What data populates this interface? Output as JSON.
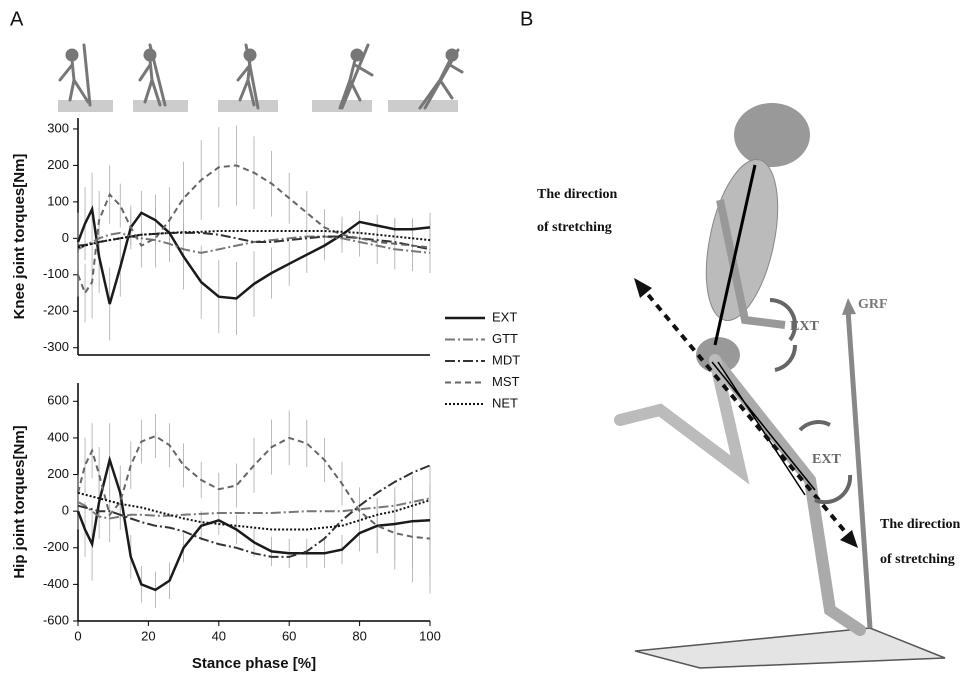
{
  "panels": [
    "A",
    "B"
  ],
  "illustration": {
    "labels": [
      "The direction",
      "of stretching",
      "GRF",
      "EXT",
      "EXT",
      "The direction",
      "of stretching"
    ]
  },
  "chart_data": [
    {
      "type": "line",
      "y_label": "Knee joint torques[Nm]",
      "legend": "right",
      "x": [
        0,
        2,
        4,
        6,
        9,
        12,
        15,
        18,
        22,
        26,
        30,
        35,
        40,
        45,
        50,
        55,
        60,
        65,
        70,
        75,
        80,
        85,
        90,
        95,
        100
      ],
      "xlim": [
        0,
        100
      ],
      "ylim": [
        -320,
        330
      ],
      "yticks": [
        -300,
        -200,
        -100,
        0,
        100,
        200,
        300
      ],
      "series": [
        {
          "name": "EXT",
          "color": "#1a1a1a",
          "style": "solid",
          "values": [
            -10,
            40,
            80,
            -50,
            -180,
            -80,
            30,
            70,
            50,
            15,
            -50,
            -120,
            -160,
            -165,
            -125,
            -95,
            -70,
            -45,
            -20,
            10,
            45,
            35,
            25,
            25,
            30
          ],
          "errors": [
            80,
            100,
            100,
            100,
            100,
            80,
            60,
            60,
            70,
            80,
            90,
            100,
            100,
            100,
            90,
            70,
            60,
            50,
            40,
            30,
            30,
            30,
            30,
            30,
            40
          ]
        },
        {
          "name": "GTT",
          "color": "#777777",
          "style": "dashdot",
          "values": [
            -30,
            -20,
            -10,
            0,
            10,
            15,
            5,
            0,
            -5,
            -15,
            -30,
            -40,
            -30,
            -20,
            -10,
            -5,
            0,
            5,
            5,
            0,
            -10,
            -20,
            -30,
            -35,
            -40
          ]
        },
        {
          "name": "MDT",
          "color": "#333333",
          "style": "dashdot",
          "values": [
            -20,
            -18,
            -15,
            -10,
            -5,
            0,
            5,
            10,
            12,
            15,
            15,
            15,
            10,
            0,
            -10,
            -10,
            -5,
            0,
            5,
            5,
            0,
            -5,
            -10,
            -20,
            -30
          ]
        },
        {
          "name": "MST",
          "color": "#666666",
          "style": "dash",
          "values": [
            -100,
            -150,
            -120,
            50,
            120,
            90,
            30,
            -20,
            0,
            50,
            110,
            160,
            195,
            200,
            180,
            150,
            110,
            70,
            30,
            10,
            0,
            -10,
            -15,
            -20,
            -25
          ],
          "errors": [
            60,
            80,
            100,
            80,
            80,
            60,
            50,
            60,
            80,
            90,
            100,
            110,
            110,
            110,
            100,
            90,
            70,
            60,
            50,
            50,
            50,
            60,
            70,
            70,
            70
          ]
        },
        {
          "name": "NET",
          "color": "#111111",
          "style": "dot",
          "values": [
            -25,
            -20,
            -15,
            -10,
            -5,
            0,
            5,
            10,
            12,
            15,
            17,
            18,
            20,
            20,
            20,
            20,
            20,
            20,
            20,
            18,
            15,
            10,
            5,
            0,
            -5
          ]
        }
      ]
    },
    {
      "type": "line",
      "y_label": "Hip joint torques[Nm]",
      "x_label": "Stance phase  [%]",
      "x": [
        0,
        2,
        4,
        6,
        9,
        12,
        15,
        18,
        22,
        26,
        30,
        35,
        40,
        45,
        50,
        55,
        60,
        65,
        70,
        75,
        80,
        85,
        90,
        95,
        100
      ],
      "xlim": [
        0,
        100
      ],
      "ylim": [
        -600,
        700
      ],
      "xticks": [
        0,
        20,
        40,
        60,
        80,
        100
      ],
      "yticks": [
        -600,
        -400,
        -200,
        0,
        200,
        400,
        600
      ],
      "series": [
        {
          "name": "EXT",
          "color": "#1a1a1a",
          "style": "solid",
          "values": [
            0,
            -100,
            -180,
            50,
            280,
            100,
            -250,
            -400,
            -430,
            -380,
            -200,
            -80,
            -50,
            -100,
            -170,
            -220,
            -230,
            -230,
            -230,
            -210,
            -120,
            -80,
            -70,
            -55,
            -50
          ],
          "errors": [
            100,
            150,
            200,
            200,
            200,
            150,
            120,
            100,
            100,
            100,
            80,
            80,
            80,
            80,
            80,
            80,
            80,
            80,
            80,
            80,
            100,
            150,
            200,
            250,
            300
          ]
        },
        {
          "name": "GTT",
          "color": "#777777",
          "style": "dashdot",
          "values": [
            50,
            30,
            0,
            -30,
            -40,
            -30,
            -20,
            -20,
            -25,
            -25,
            -20,
            -15,
            -10,
            -10,
            -10,
            -10,
            -5,
            0,
            0,
            0,
            10,
            20,
            30,
            50,
            70
          ]
        },
        {
          "name": "MDT",
          "color": "#333333",
          "style": "dashdot",
          "values": [
            30,
            20,
            10,
            0,
            0,
            -20,
            -40,
            -60,
            -80,
            -90,
            -110,
            -150,
            -180,
            -200,
            -230,
            -250,
            -250,
            -220,
            -150,
            -50,
            30,
            100,
            160,
            210,
            250
          ]
        },
        {
          "name": "MST",
          "color": "#666666",
          "style": "dash",
          "values": [
            100,
            250,
            330,
            200,
            -20,
            50,
            250,
            380,
            410,
            360,
            250,
            170,
            120,
            140,
            250,
            350,
            400,
            370,
            280,
            150,
            0,
            -80,
            -120,
            -140,
            -150
          ],
          "errors": [
            100,
            150,
            150,
            150,
            150,
            150,
            130,
            120,
            120,
            120,
            120,
            100,
            90,
            120,
            150,
            150,
            150,
            130,
            120,
            120,
            130,
            150,
            200,
            250,
            300
          ]
        },
        {
          "name": "NET",
          "color": "#111111",
          "style": "dot",
          "values": [
            100,
            90,
            80,
            70,
            55,
            40,
            30,
            20,
            0,
            -20,
            -40,
            -60,
            -70,
            -80,
            -90,
            -100,
            -100,
            -100,
            -90,
            -80,
            -50,
            -20,
            0,
            30,
            60
          ]
        }
      ]
    }
  ]
}
